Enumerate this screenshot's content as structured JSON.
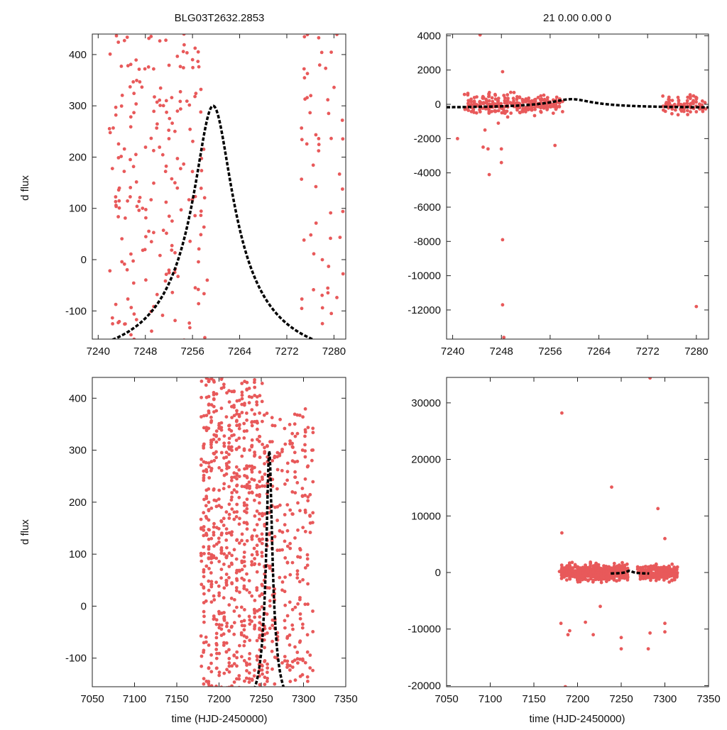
{
  "figure": {
    "top_left_title": "BLG03T2632.2853",
    "top_right_title": "21  0.00  0.00  0",
    "ylabel": "d flux",
    "xlabel": "time (HJD-2450000)"
  },
  "colors": {
    "points": "#e8595a",
    "model": "#000000",
    "axes": "#222222"
  },
  "chart_data": [
    {
      "id": "top-left",
      "type": "scatter",
      "title": "BLG03T2632.2853",
      "ylabel": "d flux",
      "xlabel": "",
      "xlim": [
        7239,
        7282
      ],
      "ylim": [
        -155,
        440
      ],
      "xticks": [
        7240,
        7248,
        7256,
        7264,
        7272,
        7280
      ],
      "yticks": [
        -100,
        0,
        100,
        200,
        300,
        400
      ],
      "model": {
        "t0": 7259.5,
        "peak": 300,
        "base": -200,
        "u0": 0.163,
        "tE": 20
      },
      "clusters": [
        {
          "x": [
            7242,
            7258
          ],
          "y": [
            -160,
            440
          ],
          "n": 200
        },
        {
          "x": [
            7274.5,
            7281.5
          ],
          "y": [
            -160,
            440
          ],
          "n": 55
        }
      ],
      "extra_points": [
        [
          7258.5,
          -40
        ]
      ]
    },
    {
      "id": "top-right",
      "type": "scatter",
      "title": "21  0.00  0.00  0",
      "ylabel": "",
      "xlabel": "",
      "xlim": [
        7239,
        7282
      ],
      "ylim": [
        -13700,
        4100
      ],
      "xticks": [
        7240,
        7248,
        7256,
        7264,
        7272,
        7280
      ],
      "yticks": [
        -12000,
        -10000,
        -8000,
        -6000,
        -4000,
        -2000,
        0,
        2000,
        4000
      ],
      "model": {
        "t0": 7259.5,
        "peak": 300,
        "base": -200,
        "u0": 0.163,
        "tE": 20
      },
      "clusters": [
        {
          "x": [
            7242,
            7258
          ],
          "y": [
            -900,
            900
          ],
          "n": 280
        },
        {
          "x": [
            7274.5,
            7281.5
          ],
          "y": [
            -800,
            700
          ],
          "n": 90
        }
      ],
      "extra_points": [
        [
          7244.5,
          4050
        ],
        [
          7248.2,
          1900
        ],
        [
          7240.8,
          -2000
        ],
        [
          7245,
          -2500
        ],
        [
          7245.8,
          -2600
        ],
        [
          7246,
          -4100
        ],
        [
          7248,
          -2600
        ],
        [
          7248,
          -3400
        ],
        [
          7248.2,
          -7900
        ],
        [
          7248.2,
          -11700
        ],
        [
          7248.4,
          -13600
        ],
        [
          7256.8,
          -2400
        ],
        [
          7245.3,
          -1500
        ],
        [
          7247.5,
          -1100
        ],
        [
          7280,
          -11800
        ]
      ]
    },
    {
      "id": "bottom-left",
      "type": "scatter",
      "title": "",
      "ylabel": "d flux",
      "xlabel": "time (HJD-2450000)",
      "xlim": [
        7050,
        7350
      ],
      "ylim": [
        -155,
        440
      ],
      "xticks": [
        7050,
        7100,
        7150,
        7200,
        7250,
        7300,
        7350
      ],
      "yticks": [
        -100,
        0,
        100,
        200,
        300,
        400
      ],
      "model": {
        "t0": 7259.5,
        "peak": 300,
        "base": -200,
        "u0": 0.163,
        "tE": 20
      },
      "clusters": [
        {
          "x": [
            7178,
            7256
          ],
          "y": [
            -160,
            440
          ],
          "n": 700
        },
        {
          "x": [
            7256,
            7312
          ],
          "y": [
            -160,
            380
          ],
          "n": 240
        }
      ],
      "extra_points": [
        [
          7310,
          300
        ],
        [
          7310,
          280
        ]
      ]
    },
    {
      "id": "bottom-right",
      "type": "scatter",
      "title": "",
      "ylabel": "",
      "xlabel": "time (HJD-2450000)",
      "xlim": [
        7050,
        7350
      ],
      "ylim": [
        -20200,
        34500
      ],
      "xticks": [
        7050,
        7100,
        7150,
        7200,
        7250,
        7300,
        7350
      ],
      "yticks": [
        -20000,
        -10000,
        0,
        10000,
        20000,
        30000
      ],
      "model": {
        "t0": 7259.5,
        "peak": 300,
        "base": -200,
        "u0": 0.163,
        "tE": 20,
        "xrange": [
          7238,
          7282
        ]
      },
      "clusters": [
        {
          "x": [
            7180,
            7258
          ],
          "y": [
            -2000,
            2000
          ],
          "n": 550
        },
        {
          "x": [
            7270,
            7314
          ],
          "y": [
            -1800,
            1800
          ],
          "n": 260
        }
      ],
      "extra_points": [
        [
          7182,
          28200
        ],
        [
          7239,
          15100
        ],
        [
          7283,
          34400
        ],
        [
          7292,
          11300
        ],
        [
          7300,
          6000
        ],
        [
          7182,
          7000
        ],
        [
          7181,
          -9000
        ],
        [
          7191,
          -10300
        ],
        [
          7189,
          -11000
        ],
        [
          7186,
          -20200
        ],
        [
          7218,
          -11000
        ],
        [
          7226,
          -6000
        ],
        [
          7250,
          -13500
        ],
        [
          7250,
          -11500
        ],
        [
          7281,
          -13500
        ],
        [
          7283,
          -10700
        ],
        [
          7300,
          -9000
        ],
        [
          7300,
          -10500
        ],
        [
          7209,
          -8800
        ]
      ]
    }
  ]
}
